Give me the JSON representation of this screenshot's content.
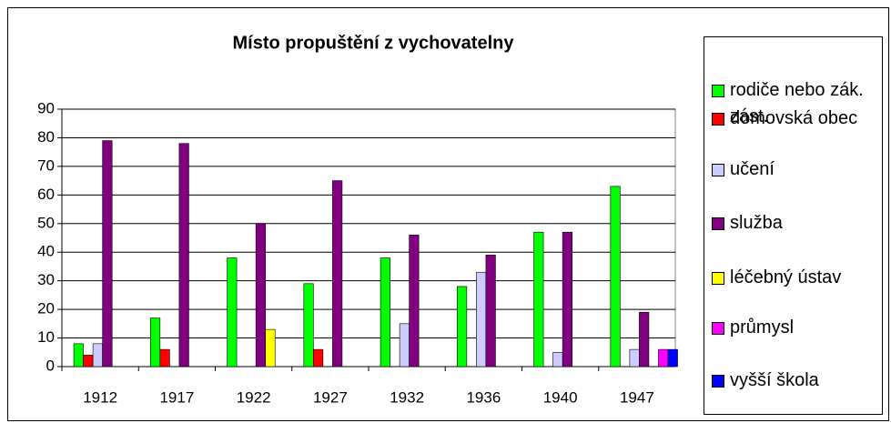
{
  "chart_data": {
    "type": "bar",
    "title": "Místo propuštění z vychovatelny",
    "categories": [
      "1912",
      "1917",
      "1922",
      "1927",
      "1932",
      "1936",
      "1940",
      "1947"
    ],
    "series": [
      {
        "name": "rodiče nebo zák. zást.",
        "color": "#00ff00",
        "values": [
          8,
          17,
          38,
          29,
          38,
          28,
          47,
          63
        ]
      },
      {
        "name": "domovská obec",
        "color": "#ff0000",
        "values": [
          4,
          6,
          0,
          6,
          0,
          0,
          0,
          0
        ]
      },
      {
        "name": "učení",
        "color": "#ccccff",
        "values": [
          8,
          0,
          0,
          0,
          15,
          33,
          5,
          6
        ]
      },
      {
        "name": "služba",
        "color": "#800080",
        "values": [
          79,
          78,
          50,
          65,
          46,
          39,
          47,
          19
        ]
      },
      {
        "name": "léčebný ústav",
        "color": "#ffff00",
        "values": [
          0,
          0,
          13,
          0,
          0,
          0,
          0,
          0
        ]
      },
      {
        "name": "průmysl",
        "color": "#ff00ff",
        "values": [
          0,
          0,
          0,
          0,
          0,
          0,
          0,
          6
        ]
      },
      {
        "name": "vyšší škola",
        "color": "#0000ff",
        "values": [
          0,
          0,
          0,
          0,
          0,
          0,
          0,
          6
        ]
      }
    ],
    "ylim": [
      0,
      90
    ],
    "yticks": [
      0,
      10,
      20,
      30,
      40,
      50,
      60,
      70,
      80,
      90
    ],
    "grid": true,
    "legend": "right"
  }
}
